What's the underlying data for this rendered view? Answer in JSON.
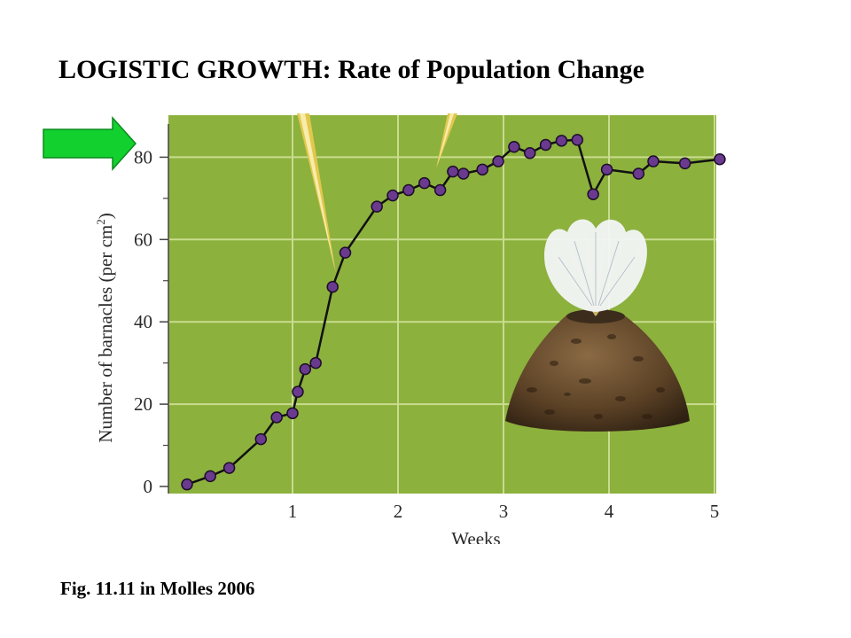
{
  "title_bold": "LOGISTIC GROWTH:",
  "title_rest": "Rate of Population Change",
  "caption": "Fig. 11.11 in Molles 2006",
  "colors": {
    "plot_bg": "#8cb13d",
    "grid": "#c9dc8f",
    "line": "#111111",
    "marker": "#6a3a8f",
    "arrow": "#12d12e"
  },
  "chart_data": {
    "type": "line",
    "xlabel": "Weeks",
    "ylabel_main": "Number of barnacles (per cm",
    "ylabel_sup": "2",
    "ylabel_end": ")",
    "xlim": [
      -0.1,
      5.15
    ],
    "ylim": [
      -2,
      88
    ],
    "x_ticks": [
      "1",
      "2",
      "3",
      "4",
      "5"
    ],
    "y_ticks": [
      "0",
      "20",
      "40",
      "60",
      "80"
    ],
    "grid": true,
    "series": [
      {
        "x": [
          0.0,
          0.22,
          0.4,
          0.7,
          0.85,
          1.0,
          1.05,
          1.12,
          1.22,
          1.38,
          1.5,
          1.8,
          1.95,
          2.1,
          2.25,
          2.4,
          2.52,
          2.62,
          2.8,
          2.95,
          3.1,
          3.25,
          3.4,
          3.55,
          3.7,
          3.85,
          3.98,
          4.28,
          4.42,
          4.72,
          5.05
        ],
        "y": [
          0.5,
          2.5,
          4.5,
          11.5,
          16.8,
          17.8,
          23.0,
          28.5,
          30.0,
          48.5,
          56.8,
          68.0,
          70.7,
          72.0,
          73.7,
          72.0,
          76.5,
          76.0,
          77.0,
          79.0,
          82.5,
          81.0,
          83.0,
          84.0,
          84.2,
          71.0,
          77.0,
          76.0,
          79.0,
          78.5,
          79.5
        ]
      }
    ]
  }
}
